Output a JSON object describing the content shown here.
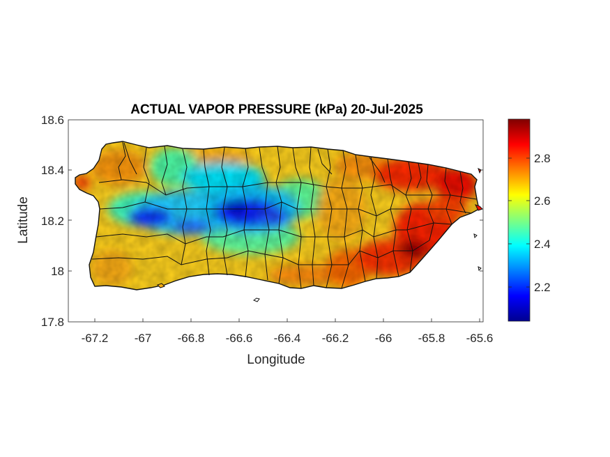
{
  "chart_data": {
    "type": "heatmap",
    "title": "ACTUAL VAPOR PRESSURE (kPa) 20-Jul-2025",
    "xlabel": "Longitude",
    "ylabel": "Latitude",
    "xlim": [
      -67.3,
      -65.58
    ],
    "ylim": [
      17.8,
      18.6
    ],
    "xticks": [
      "-67.2",
      "-67",
      "-66.8",
      "-66.6",
      "-66.4",
      "-66.2",
      "-66",
      "-65.8",
      "-65.6"
    ],
    "yticks": [
      "17.8",
      "18",
      "18.2",
      "18.4",
      "18.6"
    ],
    "colorbar": {
      "colormap": "jet",
      "range": [
        2.03,
        2.99
      ],
      "ticks": [
        "2.2",
        "2.4",
        "2.6",
        "2.8"
      ]
    },
    "pattern": {
      "low_region": "central mountain range (west-central), min ~2.05 kPa",
      "high_region": "east and southeast coast, max ~2.99 kPa"
    }
  }
}
